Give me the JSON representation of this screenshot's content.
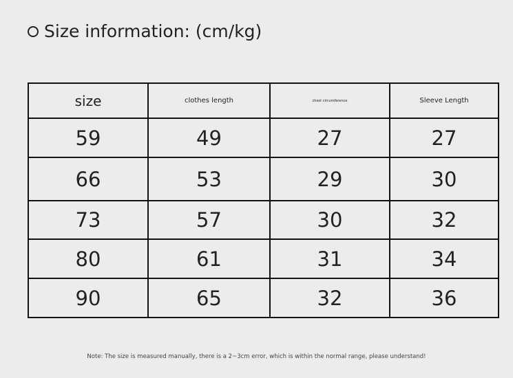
{
  "title": "Size information: (cm/kg)",
  "table": {
    "headers": [
      "size",
      "clothes length",
      "chest circumference",
      "Sleeve Length"
    ],
    "rows": [
      [
        "59",
        "49",
        "27",
        "27"
      ],
      [
        "66",
        "53",
        "29",
        "30"
      ],
      [
        "73",
        "57",
        "30",
        "32"
      ],
      [
        "80",
        "61",
        "31",
        "34"
      ],
      [
        "90",
        "65",
        "32",
        "36"
      ]
    ]
  },
  "note": "Note: The size is measured manually, there is a 2~3cm error, which is within the normal range, please understand!"
}
